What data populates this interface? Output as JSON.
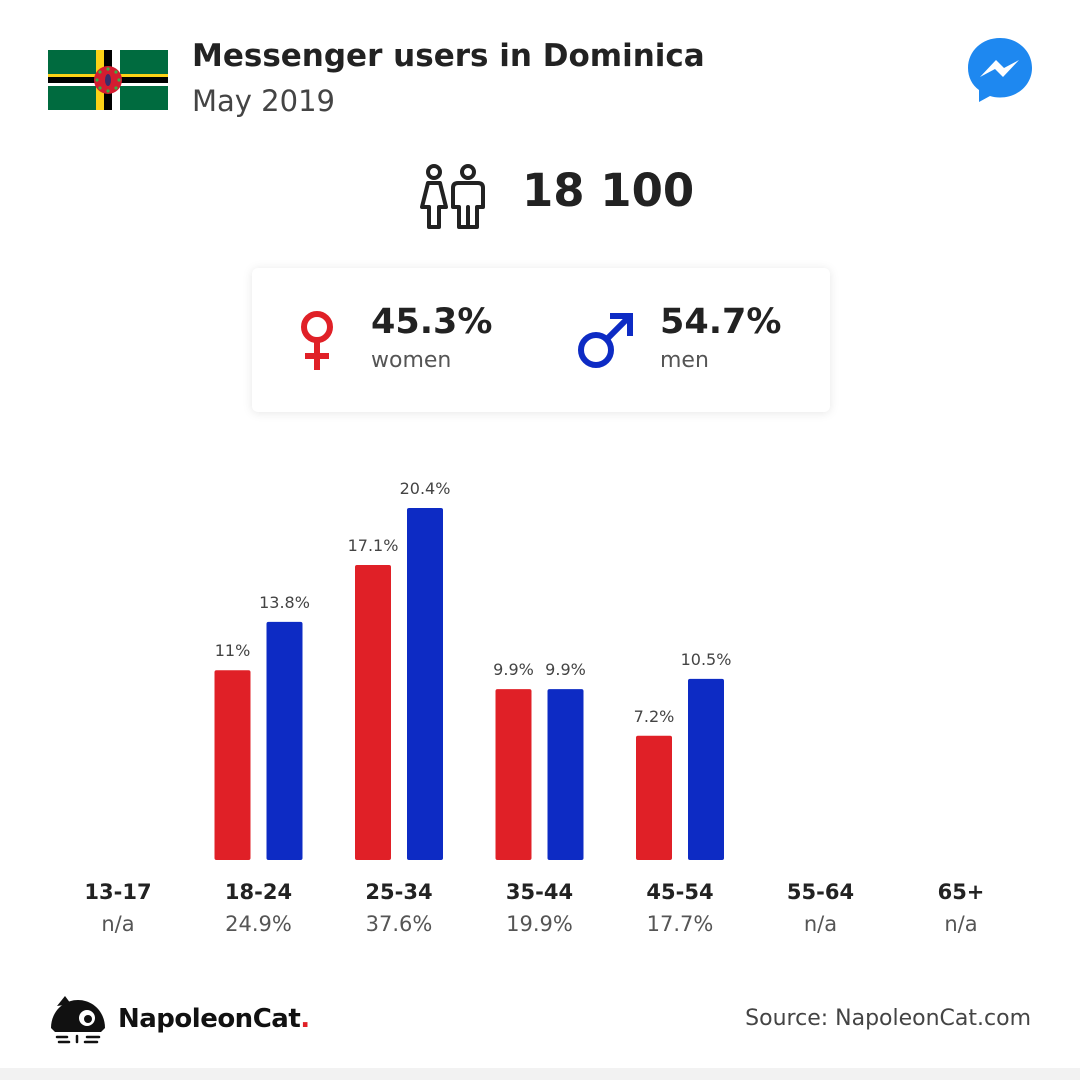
{
  "header": {
    "title": "Messenger users in Dominica",
    "subtitle": "May 2019",
    "flag_icon": "dominica-flag",
    "app_icon": "messenger-icon"
  },
  "summary": {
    "total_users": "18 100",
    "people_icon": "people-icon"
  },
  "gender": {
    "women": {
      "percent": "45.3%",
      "label": "women",
      "icon": "female-symbol-icon",
      "color": "#e02027"
    },
    "men": {
      "percent": "54.7%",
      "label": "men",
      "icon": "male-symbol-icon",
      "color": "#0d2bc4"
    }
  },
  "chart_data": {
    "type": "bar",
    "categories": [
      "13-17",
      "18-24",
      "25-34",
      "35-44",
      "45-54",
      "55-64",
      "65+"
    ],
    "category_totals": [
      "n/a",
      "24.9%",
      "37.6%",
      "19.9%",
      "17.7%",
      "n/a",
      "n/a"
    ],
    "series": [
      {
        "name": "women",
        "color": "#e02027",
        "values": [
          null,
          11,
          17.1,
          9.9,
          7.2,
          null,
          null
        ],
        "labels": [
          "",
          "11%",
          "17.1%",
          "9.9%",
          "7.2%",
          "",
          ""
        ]
      },
      {
        "name": "men",
        "color": "#0d2bc4",
        "values": [
          null,
          13.8,
          20.4,
          9.9,
          10.5,
          null,
          null
        ],
        "labels": [
          "",
          "13.8%",
          "20.4%",
          "9.9%",
          "10.5%",
          "",
          ""
        ]
      }
    ],
    "title": "",
    "xlabel": "",
    "ylabel": "",
    "ylim": [
      0,
      20.4
    ],
    "grid": false,
    "legend": "none"
  },
  "footer": {
    "brand": "NapoleonCat",
    "brand_dot": ".",
    "source": "Source: NapoleonCat.com",
    "logo_icon": "napoleoncat-logo-icon"
  }
}
